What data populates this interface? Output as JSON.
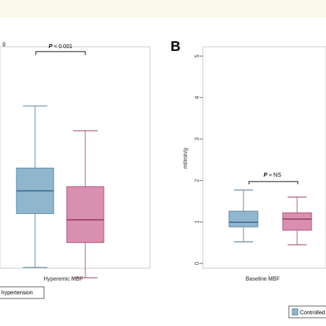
{
  "colors": {
    "background": "#ffffff",
    "header_strip": "#fbf9ec",
    "controlled": "#8fb6cd",
    "controlled_median": "#2f5d8c",
    "hypertension": "#d98fb0",
    "hypertension_median": "#8a2e55",
    "whisker_controlled": "#5f84a0",
    "whisker_hypertension": "#b1507a"
  },
  "chart_data": [
    {
      "type": "box",
      "panel": "A",
      "panel_label": "",
      "ylabel": "g",
      "category_label": "Hyperemic MBF",
      "significance": {
        "prefix": "P",
        "text": " < 0.001"
      },
      "series": [
        {
          "name": "",
          "min": 0.9,
          "q1": 2.2,
          "median": 2.75,
          "q3": 3.3,
          "max": 4.8
        },
        {
          "name": "hypertension",
          "min": 0.65,
          "q1": 1.5,
          "median": 2.05,
          "q3": 2.85,
          "max": 4.2
        }
      ],
      "legend": [
        {
          "label": "hypertension",
          "series": 1
        }
      ]
    },
    {
      "type": "box",
      "panel": "B",
      "panel_label": "B",
      "ylabel": "ml/min/g",
      "ylim": [
        0,
        5
      ],
      "yticks": [
        "0",
        "1",
        "2",
        "3",
        "4",
        "5"
      ],
      "category_label": "Baseline MBF",
      "significance": {
        "prefix": "P",
        "text": " = NS"
      },
      "series": [
        {
          "name": "Controlled",
          "min": 0.52,
          "q1": 0.88,
          "median": 0.99,
          "q3": 1.26,
          "max": 1.77
        },
        {
          "name": "",
          "min": 0.45,
          "q1": 0.8,
          "median": 1.07,
          "q3": 1.22,
          "max": 1.6
        }
      ],
      "legend": [
        {
          "label": "Controlled",
          "series": 0
        }
      ]
    }
  ]
}
